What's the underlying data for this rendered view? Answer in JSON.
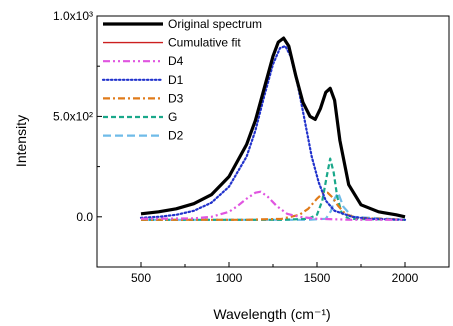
{
  "chart_data": {
    "type": "line",
    "xlabel": "Wavelength (cm⁻¹)",
    "ylabel": "Intensity",
    "xlim": [
      250,
      2250
    ],
    "ylim": [
      -250,
      1000
    ],
    "x_ticks": [
      500,
      1000,
      1500,
      2000
    ],
    "x_tick_labels": [
      "500",
      "1000",
      "1500",
      "2000"
    ],
    "y_ticks": [
      0,
      500,
      1000
    ],
    "y_tick_labels": [
      "0.0",
      "5.0x10²",
      "1.0x10³"
    ],
    "legend_position": "top-left",
    "series": [
      {
        "name": "Original spectrum",
        "color": "#000000",
        "dash": "solid",
        "x": [
          500,
          600,
          700,
          800,
          900,
          1000,
          1100,
          1150,
          1200,
          1250,
          1280,
          1310,
          1340,
          1380,
          1420,
          1460,
          1490,
          1520,
          1550,
          1575,
          1600,
          1630,
          1680,
          1750,
          1850,
          1950,
          2000
        ],
        "y": [
          15,
          25,
          40,
          65,
          110,
          200,
          360,
          480,
          640,
          800,
          870,
          890,
          850,
          700,
          570,
          500,
          485,
          540,
          620,
          640,
          580,
          380,
          160,
          60,
          25,
          10,
          0
        ]
      },
      {
        "name": "Cumulative fit",
        "color": "#cc1f1f",
        "dash": "solid",
        "x": [
          500,
          600,
          700,
          800,
          900,
          1000,
          1100,
          1150,
          1200,
          1250,
          1280,
          1310,
          1340,
          1380,
          1420,
          1460,
          1490,
          1520,
          1550,
          1575,
          1600,
          1630,
          1680,
          1750,
          1850,
          1950,
          2000
        ],
        "y": [
          15,
          25,
          40,
          65,
          110,
          200,
          360,
          480,
          640,
          800,
          870,
          890,
          850,
          700,
          570,
          500,
          485,
          540,
          620,
          640,
          580,
          380,
          160,
          60,
          25,
          10,
          0
        ]
      },
      {
        "name": "D4",
        "color": "#e055e0",
        "dash": "dashdotdot",
        "x": [
          500,
          800,
          900,
          1000,
          1050,
          1100,
          1150,
          1180,
          1220,
          1270,
          1330,
          1400,
          1500,
          1700,
          2000
        ],
        "y": [
          -10,
          -8,
          0,
          25,
          55,
          90,
          120,
          125,
          100,
          55,
          15,
          0,
          -10,
          -15,
          -15
        ]
      },
      {
        "name": "D1",
        "color": "#2233cc",
        "dash": "dot",
        "x": [
          500,
          600,
          700,
          800,
          900,
          1000,
          1100,
          1150,
          1200,
          1250,
          1290,
          1320,
          1350,
          1390,
          1430,
          1470,
          1510,
          1550,
          1600,
          1700,
          1800,
          2000
        ],
        "y": [
          -5,
          0,
          10,
          30,
          70,
          150,
          300,
          430,
          600,
          760,
          840,
          850,
          800,
          660,
          480,
          300,
          170,
          80,
          30,
          0,
          -10,
          -15
        ]
      },
      {
        "name": "D3",
        "color": "#e07b1a",
        "dash": "dashdot",
        "x": [
          500,
          1100,
          1300,
          1400,
          1450,
          1500,
          1530,
          1560,
          1590,
          1620,
          1660,
          1720,
          2000
        ],
        "y": [
          -15,
          -15,
          -10,
          10,
          40,
          90,
          115,
          120,
          95,
          55,
          15,
          -5,
          -15
        ]
      },
      {
        "name": "G",
        "color": "#1aa88a",
        "dash": "dash",
        "x": [
          500,
          1300,
          1450,
          1500,
          1530,
          1555,
          1575,
          1595,
          1615,
          1640,
          1680,
          2000
        ],
        "y": [
          -15,
          -15,
          -10,
          10,
          80,
          200,
          290,
          220,
          100,
          20,
          -10,
          -15
        ]
      },
      {
        "name": "D2",
        "color": "#6fbbe8",
        "dash": "longdash",
        "x": [
          500,
          1450,
          1550,
          1580,
          1600,
          1620,
          1650,
          1700,
          2000
        ],
        "y": [
          -15,
          -15,
          -10,
          30,
          90,
          120,
          50,
          0,
          -15
        ]
      }
    ]
  }
}
